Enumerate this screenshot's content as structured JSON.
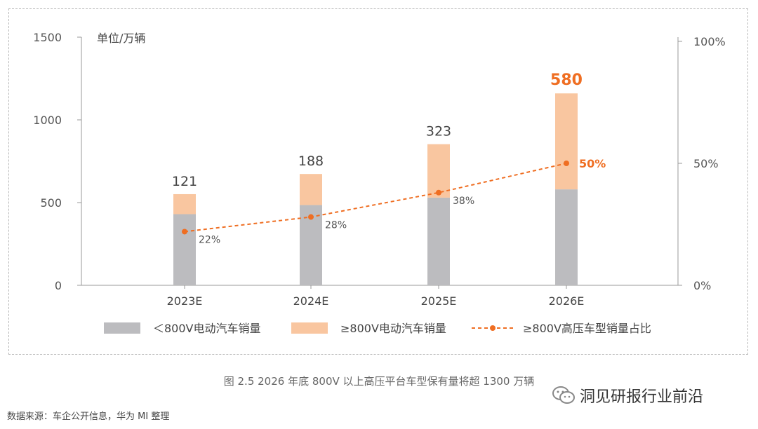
{
  "chart_data": {
    "type": "bar",
    "stacked": true,
    "categories": [
      "2023E",
      "2024E",
      "2025E",
      "2026E"
    ],
    "unit_label": "单位/万辆",
    "y_left": {
      "range": [
        0,
        1500
      ],
      "ticks": [
        "0",
        "500",
        "1000",
        "1500"
      ]
    },
    "y_right": {
      "range": [
        0,
        100
      ],
      "ticks": [
        "0%",
        "50%",
        "100%"
      ]
    },
    "series": [
      {
        "name": "＜800V电动汽车销量",
        "type": "bar",
        "color": "#bcbcbf",
        "values": [
          430,
          485,
          530,
          580
        ]
      },
      {
        "name": "≥800V电动汽车销量",
        "type": "bar",
        "color": "#f9c6a0",
        "values": [
          121,
          188,
          323,
          580
        ]
      },
      {
        "name": "≥800V高压车型销量占比",
        "type": "line",
        "axis": "right",
        "color": "#ef6e22",
        "values": [
          22,
          28,
          38,
          50
        ]
      }
    ],
    "bar_labels": [
      "121",
      "188",
      "323",
      "580"
    ],
    "line_labels": [
      "22%",
      "28%",
      "38%",
      "50%"
    ],
    "highlight_color": "#ef6e22"
  },
  "caption": "图 2.5 2026 年底 800V 以上高压平台车型保有量将超 1300 万辆",
  "source": "数据来源：车企公开信息，华为 MI 整理",
  "watermark": "洞见研报行业前沿"
}
